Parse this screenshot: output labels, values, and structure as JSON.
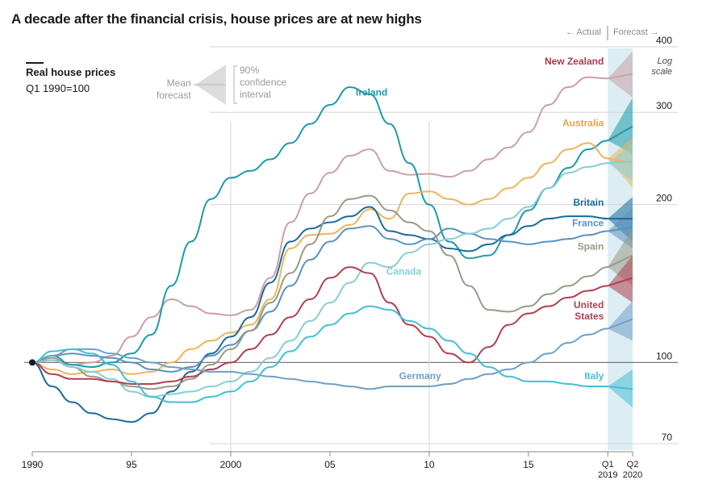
{
  "title": "A decade after the financial crisis, house prices are at new highs",
  "legend": {
    "series_title": "Real house prices",
    "subtitle": "Q1 1990=100",
    "mean_label_1": "Mean",
    "mean_label_2": "forecast",
    "ci_label_1": "90%",
    "ci_label_2": "confidence",
    "ci_label_3": "interval"
  },
  "header": {
    "actual_label": "← Actual",
    "forecast_label": "Forecast →"
  },
  "y_axis": {
    "scale_label_1": "Log",
    "scale_label_2": "scale"
  },
  "colors": {
    "new_zealand": "#c9a0a8",
    "new_zealand_label": "#a83a4a",
    "ireland": "#1d9aa8",
    "australia": "#ecb55b",
    "australia_label": "#e0a34c",
    "britain": "#1b6a9c",
    "france": "#5b92bf",
    "spain": "#9a9a88",
    "canada": "#85cfd3",
    "united_states": "#b0404f",
    "germany": "#6f9fc6",
    "italy": "#43bfd6",
    "forecast_band": "#dceef3",
    "gridline": "#d6d6d6"
  },
  "chart_data": {
    "type": "line",
    "title": "A decade after the financial crisis, house prices are at new highs",
    "ylabel": "Real house prices, Q1 1990=100",
    "y_scale": "log",
    "ylim": [
      70,
      400
    ],
    "y_ticks": [
      70,
      100,
      200,
      300,
      400
    ],
    "y_tick_labels": [
      "70",
      "100",
      "200",
      "300",
      "400"
    ],
    "xlim": [
      1990.0,
      2020.25
    ],
    "x_ticks": [
      1990,
      1995,
      2000,
      2005,
      2010,
      2015,
      2019.0,
      2020.25
    ],
    "x_tick_labels": [
      "1990",
      "95",
      "2000",
      "05",
      "10",
      "15",
      "Q1 2019",
      "Q2 2020"
    ],
    "forecast_start": 2019.0,
    "series": [
      {
        "name": "New Zealand",
        "x": [
          1990,
          1991,
          1992,
          1993,
          1994,
          1995,
          1996,
          1997,
          1998,
          1999,
          2000,
          2001,
          2002,
          2003,
          2004,
          2005,
          2006,
          2007,
          2008,
          2009,
          2010,
          2011,
          2012,
          2013,
          2014,
          2015,
          2016,
          2017,
          2018,
          2019
        ],
        "y": [
          100,
          101,
          99,
          100,
          103,
          112,
          122,
          132,
          128,
          124,
          123,
          126,
          145,
          185,
          210,
          230,
          248,
          255,
          232,
          228,
          229,
          226,
          232,
          244,
          257,
          275,
          310,
          335,
          350,
          348
        ],
        "forecast": {
          "x": [
            2019.0,
            2020.25
          ],
          "mean": [
            348,
            355
          ],
          "lo": [
            348,
            320
          ],
          "hi": [
            348,
            392
          ]
        }
      },
      {
        "name": "Ireland",
        "x": [
          1990,
          1991,
          1992,
          1993,
          1994,
          1995,
          1996,
          1997,
          1998,
          1999,
          2000,
          2001,
          2002,
          2003,
          2004,
          2005,
          2006,
          2007,
          2008,
          2009,
          2010,
          2011,
          2012,
          2013,
          2014,
          2015,
          2016,
          2017,
          2018,
          2019
        ],
        "y": [
          100,
          103,
          99,
          98,
          100,
          104,
          113,
          140,
          170,
          205,
          225,
          232,
          244,
          262,
          285,
          310,
          335,
          325,
          285,
          240,
          200,
          170,
          158,
          160,
          175,
          195,
          215,
          235,
          255,
          265
        ],
        "forecast": {
          "x": [
            2019.0,
            2020.25
          ],
          "mean": [
            265,
            282
          ],
          "lo": [
            265,
            250
          ],
          "hi": [
            265,
            320
          ]
        }
      },
      {
        "name": "Australia",
        "x": [
          1990,
          1991,
          1992,
          1993,
          1994,
          1995,
          1996,
          1997,
          1998,
          1999,
          2000,
          2001,
          2002,
          2003,
          2004,
          2005,
          2006,
          2007,
          2008,
          2009,
          2010,
          2011,
          2012,
          2013,
          2014,
          2015,
          2016,
          2017,
          2018,
          2019
        ],
        "y": [
          100,
          97,
          95,
          96,
          97,
          95,
          96,
          100,
          106,
          110,
          114,
          118,
          132,
          165,
          175,
          176,
          183,
          196,
          188,
          210,
          212,
          205,
          200,
          205,
          215,
          225,
          240,
          255,
          262,
          245
        ],
        "forecast": {
          "x": [
            2019.0,
            2020.25
          ],
          "mean": [
            245,
            240
          ],
          "lo": [
            245,
            215
          ],
          "hi": [
            245,
            268
          ]
        }
      },
      {
        "name": "Britain",
        "x": [
          1990,
          1991,
          1992,
          1993,
          1994,
          1995,
          1996,
          1997,
          1998,
          1999,
          2000,
          2001,
          2002,
          2003,
          2004,
          2005,
          2006,
          2007,
          2008,
          2009,
          2010,
          2011,
          2012,
          2013,
          2014,
          2015,
          2016,
          2017,
          2018,
          2019
        ],
        "y": [
          100,
          90,
          84,
          80,
          78,
          77,
          80,
          88,
          96,
          104,
          112,
          122,
          142,
          170,
          180,
          185,
          190,
          198,
          178,
          175,
          172,
          165,
          163,
          168,
          175,
          182,
          188,
          190,
          190,
          188
        ],
        "forecast": {
          "x": [
            2019.0,
            2020.25
          ],
          "mean": [
            188,
            188
          ],
          "lo": [
            188,
            170
          ],
          "hi": [
            188,
            207
          ]
        }
      },
      {
        "name": "France",
        "x": [
          1990,
          1991,
          1992,
          1993,
          1994,
          1995,
          1996,
          1997,
          1998,
          1999,
          2000,
          2001,
          2002,
          2003,
          2004,
          2005,
          2006,
          2007,
          2008,
          2009,
          2010,
          2011,
          2012,
          2013,
          2014,
          2015,
          2016,
          2017,
          2018,
          2019
        ],
        "y": [
          100,
          103,
          104,
          103,
          102,
          100,
          97,
          96,
          98,
          103,
          108,
          115,
          125,
          140,
          157,
          170,
          180,
          182,
          172,
          168,
          172,
          180,
          176,
          172,
          170,
          168,
          170,
          172,
          175,
          178
        ],
        "forecast": {
          "x": [
            2019.0,
            2020.25
          ],
          "mean": [
            178,
            181
          ],
          "lo": [
            178,
            165
          ],
          "hi": [
            178,
            197
          ]
        }
      },
      {
        "name": "Spain",
        "x": [
          1990,
          1991,
          1992,
          1993,
          1994,
          1995,
          1996,
          1997,
          1998,
          1999,
          2000,
          2001,
          2002,
          2003,
          2004,
          2005,
          2006,
          2007,
          2008,
          2009,
          2010,
          2011,
          2012,
          2013,
          2014,
          2015,
          2016,
          2017,
          2018,
          2019
        ],
        "y": [
          100,
          102,
          98,
          94,
          92,
          90,
          89,
          90,
          93,
          99,
          106,
          115,
          130,
          148,
          168,
          190,
          205,
          208,
          195,
          185,
          178,
          160,
          140,
          126,
          125,
          128,
          135,
          140,
          146,
          152
        ],
        "forecast": {
          "x": [
            2019.0,
            2020.25
          ],
          "mean": [
            152,
            160
          ],
          "lo": [
            152,
            140
          ],
          "hi": [
            152,
            180
          ]
        }
      },
      {
        "name": "Canada",
        "x": [
          1990,
          1991,
          1992,
          1993,
          1994,
          1995,
          1996,
          1997,
          1998,
          1999,
          2000,
          2001,
          2002,
          2003,
          2004,
          2005,
          2006,
          2007,
          2008,
          2009,
          2010,
          2011,
          2012,
          2013,
          2014,
          2015,
          2016,
          2017,
          2018,
          2019
        ],
        "y": [
          100,
          101,
          98,
          96,
          93,
          88,
          86,
          87,
          88,
          90,
          92,
          96,
          102,
          110,
          120,
          130,
          142,
          155,
          152,
          162,
          168,
          172,
          176,
          180,
          188,
          198,
          215,
          230,
          236,
          240
        ],
        "forecast": {
          "x": [
            2019.0,
            2020.25
          ],
          "mean": [
            240,
            242
          ],
          "lo": [
            240,
            222
          ],
          "hi": [
            240,
            262
          ]
        }
      },
      {
        "name": "United States",
        "x": [
          1990,
          1991,
          1992,
          1993,
          1994,
          1995,
          1996,
          1997,
          1998,
          1999,
          2000,
          2001,
          2002,
          2003,
          2004,
          2005,
          2006,
          2007,
          2008,
          2009,
          2010,
          2011,
          2012,
          2013,
          2014,
          2015,
          2016,
          2017,
          2018,
          2019
        ],
        "y": [
          100,
          95,
          93,
          93,
          92,
          91,
          91,
          92,
          94,
          97,
          100,
          106,
          113,
          122,
          132,
          145,
          152,
          148,
          130,
          118,
          112,
          104,
          100,
          107,
          118,
          124,
          128,
          133,
          137,
          140
        ],
        "forecast": {
          "x": [
            2019.0,
            2020.25
          ],
          "mean": [
            140,
            145
          ],
          "lo": [
            140,
            130
          ],
          "hi": [
            140,
            160
          ]
        }
      },
      {
        "name": "Germany",
        "x": [
          1990,
          1991,
          1992,
          1993,
          1994,
          1995,
          1996,
          1997,
          1998,
          1999,
          2000,
          2001,
          2002,
          2003,
          2004,
          2005,
          2006,
          2007,
          2008,
          2009,
          2010,
          2011,
          2012,
          2013,
          2014,
          2015,
          2016,
          2017,
          2018,
          2019
        ],
        "y": [
          100,
          103,
          106,
          106,
          104,
          102,
          100,
          98,
          97,
          96,
          96,
          95,
          94,
          93,
          92,
          91,
          90,
          89,
          90,
          90,
          90,
          91,
          93,
          95,
          97,
          100,
          104,
          109,
          113,
          116
        ],
        "forecast": {
          "x": [
            2019.0,
            2020.25
          ],
          "mean": [
            116,
            121
          ],
          "lo": [
            116,
            110
          ],
          "hi": [
            116,
            131
          ]
        }
      },
      {
        "name": "Italy",
        "x": [
          1990,
          1991,
          1992,
          1993,
          1994,
          1995,
          1996,
          1997,
          1998,
          1999,
          2000,
          2001,
          2002,
          2003,
          2004,
          2005,
          2006,
          2007,
          2008,
          2009,
          2010,
          2011,
          2012,
          2013,
          2014,
          2015,
          2016,
          2017,
          2018,
          2019
        ],
        "y": [
          100,
          105,
          106,
          104,
          99,
          92,
          86,
          84,
          84,
          86,
          88,
          92,
          98,
          105,
          112,
          118,
          124,
          128,
          126,
          120,
          116,
          110,
          104,
          98,
          94,
          92,
          92,
          91,
          90,
          90
        ],
        "forecast": {
          "x": [
            2019.0,
            2020.25
          ],
          "mean": [
            90,
            89
          ],
          "lo": [
            90,
            82
          ],
          "hi": [
            90,
            97
          ]
        }
      }
    ]
  }
}
